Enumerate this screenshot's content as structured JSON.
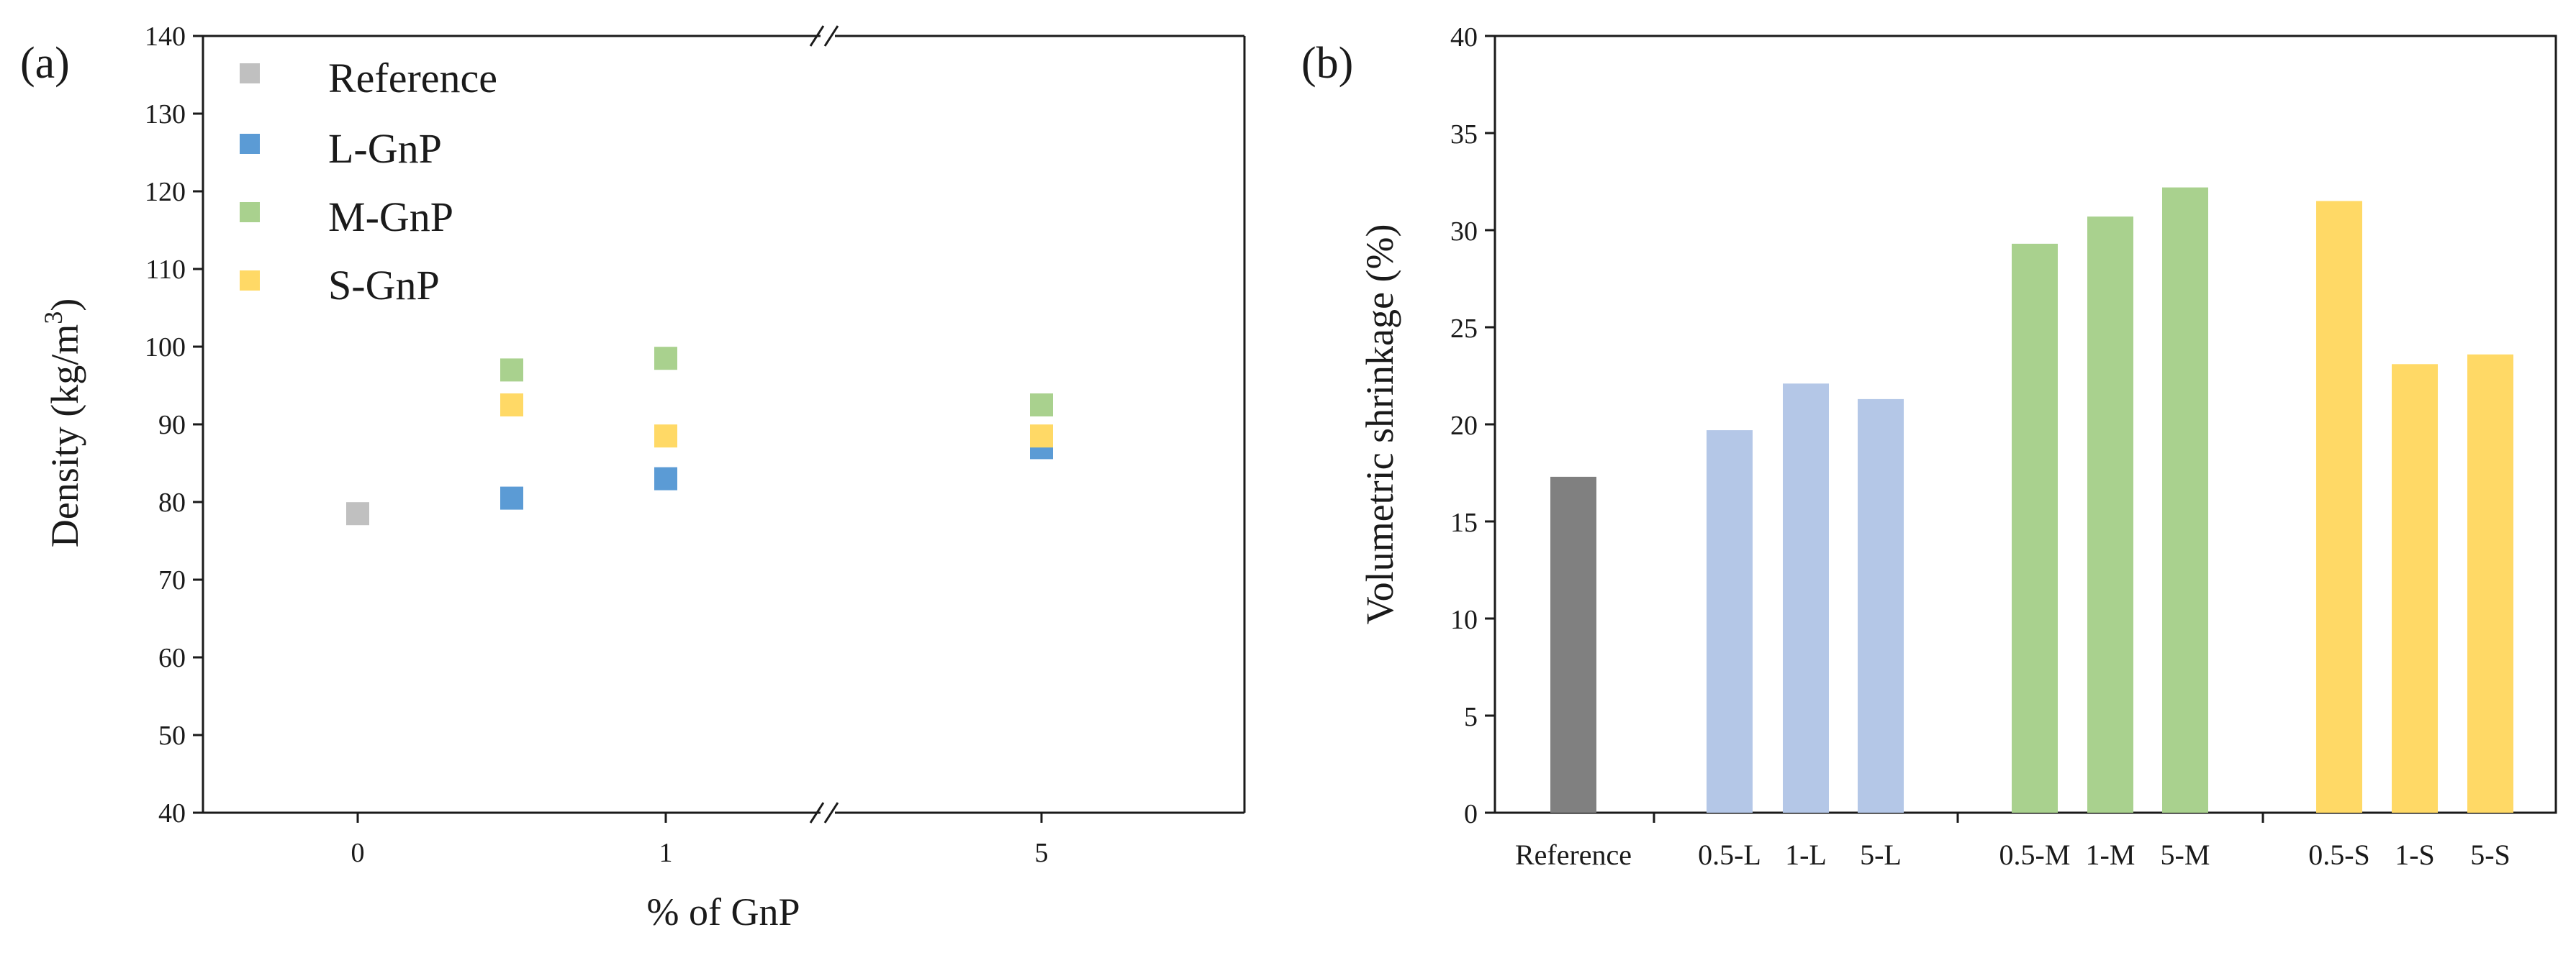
{
  "chart_data": [
    {
      "panel": "(a)",
      "type": "scatter",
      "title": "",
      "xlabel": "% of GnP",
      "ylabel": "Density (kg/m",
      "ylabel_superscript": "3",
      "ylabel_suffix": ")",
      "ylim": [
        40,
        140
      ],
      "yticks": [
        40,
        50,
        60,
        70,
        80,
        90,
        100,
        110,
        120,
        130,
        140
      ],
      "xtick_labels": [
        "0",
        "1",
        "5"
      ],
      "axis_break": "between 1 and 5",
      "legend": [
        "Reference",
        "L-GnP",
        "M-GnP",
        "S-GnP"
      ],
      "series": [
        {
          "name": "Reference",
          "color": "#c0c0c0",
          "points": [
            {
              "x": "0",
              "y": 78.5
            }
          ]
        },
        {
          "name": "L-GnP",
          "color": "#5b9bd5",
          "points": [
            {
              "x": "0.5",
              "y": 80.5
            },
            {
              "x": "1",
              "y": 83.0
            },
            {
              "x": "5",
              "y": 87.0
            }
          ]
        },
        {
          "name": "M-GnP",
          "color": "#a9d18e",
          "points": [
            {
              "x": "0.5",
              "y": 97.0
            },
            {
              "x": "1",
              "y": 98.5
            },
            {
              "x": "5",
              "y": 92.5
            }
          ]
        },
        {
          "name": "S-GnP",
          "color": "#ffd966",
          "points": [
            {
              "x": "0.5",
              "y": 92.5
            },
            {
              "x": "1",
              "y": 88.5
            },
            {
              "x": "5",
              "y": 88.5
            }
          ]
        }
      ]
    },
    {
      "panel": "(b)",
      "type": "bar",
      "title": "",
      "xlabel": "",
      "ylabel": "Volumetric shrinkage (%)",
      "ylim": [
        0,
        40
      ],
      "yticks": [
        0,
        5,
        10,
        15,
        20,
        25,
        30,
        35,
        40
      ],
      "categories": [
        "Reference",
        "0.5-L",
        "1-L",
        "5-L",
        "0.5-M",
        "1-M",
        "5-M",
        "0.5-S",
        "1-S",
        "5-S"
      ],
      "values": [
        17.3,
        19.7,
        22.1,
        21.3,
        29.3,
        30.7,
        32.2,
        31.5,
        23.1,
        23.6
      ],
      "colors": [
        "#808080",
        "#b4c7e7",
        "#b4c7e7",
        "#b4c7e7",
        "#a9d18e",
        "#a9d18e",
        "#a9d18e",
        "#ffd966",
        "#ffd966",
        "#ffd966"
      ]
    }
  ]
}
